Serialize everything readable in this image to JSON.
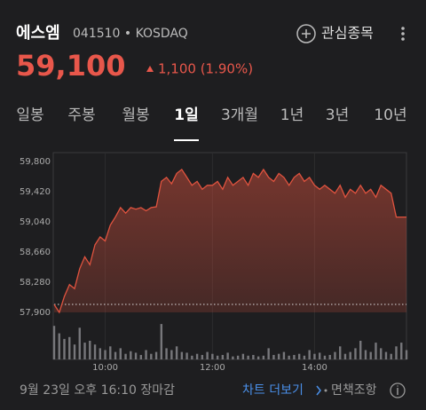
{
  "header": {
    "name": "에스엠",
    "code": "041510 • KOSDAQ",
    "watch": "관심종목",
    "price": "59,100",
    "change": "1,100 (1.90%)"
  },
  "tabs": {
    "items": [
      "일봉",
      "주봉",
      "월봉",
      "1일",
      "3개월",
      "1년",
      "3년",
      "10년"
    ],
    "selected": 3
  },
  "chart_data": {
    "type": "line",
    "categories": [
      null,
      null,
      null,
      null,
      null,
      null,
      null,
      null,
      null,
      null,
      "10:00",
      null,
      null,
      null,
      null,
      null,
      null,
      null,
      null,
      null,
      null,
      null,
      null,
      null,
      null,
      null,
      null,
      null,
      null,
      null,
      null,
      "12:00",
      null,
      null,
      null,
      null,
      null,
      null,
      null,
      null,
      null,
      null,
      null,
      null,
      null,
      null,
      null,
      null,
      null,
      null,
      null,
      "14:00",
      null,
      null,
      null,
      null,
      null,
      null,
      null,
      null,
      null,
      null,
      null,
      null,
      null,
      null,
      null,
      null,
      null,
      null
    ],
    "series": [
      {
        "color": "#e0533f",
        "values": [
          58000,
          57900,
          58100,
          58250,
          58200,
          58450,
          58600,
          58500,
          58750,
          58850,
          58800,
          59000,
          59100,
          59220,
          59150,
          59220,
          59200,
          59220,
          59180,
          59220,
          59230,
          59550,
          59600,
          59520,
          59650,
          59700,
          59600,
          59500,
          59550,
          59450,
          59500,
          59500,
          59550,
          59450,
          59600,
          59500,
          59550,
          59600,
          59500,
          59650,
          59600,
          59700,
          59600,
          59550,
          59650,
          59600,
          59500,
          59600,
          59650,
          59550,
          59600,
          59500,
          59450,
          59500,
          59450,
          59400,
          59500,
          59350,
          59450,
          59400,
          59500,
          59400,
          59450,
          59350,
          59500,
          59450,
          59400,
          59100,
          59100,
          59100
        ]
      }
    ],
    "volume": [
      90,
      70,
      55,
      60,
      40,
      85,
      45,
      50,
      40,
      30,
      25,
      35,
      20,
      30,
      15,
      22,
      18,
      12,
      25,
      15,
      20,
      95,
      30,
      25,
      35,
      20,
      18,
      10,
      15,
      12,
      20,
      15,
      10,
      12,
      18,
      8,
      10,
      15,
      10,
      12,
      8,
      10,
      30,
      12,
      15,
      20,
      10,
      12,
      15,
      10,
      25,
      15,
      18,
      10,
      12,
      20,
      35,
      15,
      20,
      30,
      50,
      25,
      20,
      45,
      30,
      20,
      15,
      35,
      45,
      25
    ],
    "volume_lim": [
      0,
      100
    ],
    "reference_line": 58000,
    "ylim": [
      57900,
      59800
    ],
    "yticks": [
      {
        "value": 57900,
        "label": "57,900"
      },
      {
        "value": 58280,
        "label": "58,280"
      },
      {
        "value": 58660,
        "label": "58,660"
      },
      {
        "value": 59040,
        "label": "59,040"
      },
      {
        "value": 59420,
        "label": "59,420"
      },
      {
        "value": 59800,
        "label": "59,800"
      }
    ]
  },
  "footer": {
    "status": "9월 23일 오후 16:10 장마감",
    "more": "차트 더보기",
    "disclaimer": "면책조항"
  }
}
